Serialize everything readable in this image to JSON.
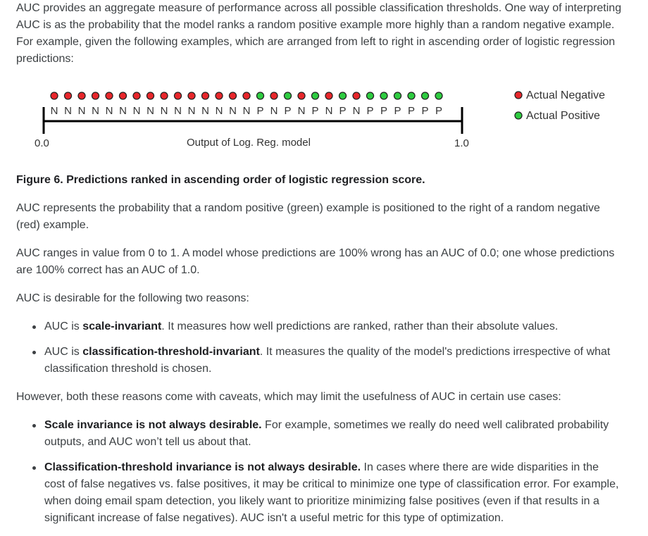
{
  "intro": {
    "text": "AUC provides an aggregate measure of performance across all possible classification thresholds. One way of interpreting AUC is as the probability that the model ranks a random positive example more highly than a random negative example. For example, given the following examples, which are arranged from left to right in ascending order of logistic regression predictions:"
  },
  "figure": {
    "sequence": [
      "N",
      "N",
      "N",
      "N",
      "N",
      "N",
      "N",
      "N",
      "N",
      "N",
      "N",
      "N",
      "N",
      "N",
      "N",
      "P",
      "N",
      "P",
      "N",
      "P",
      "N",
      "P",
      "N",
      "P",
      "P",
      "P",
      "P",
      "P",
      "P"
    ],
    "colors": {
      "negative": "#e8262b",
      "positive": "#2ecc40",
      "axis": "#000000",
      "outline": "#222222"
    },
    "axis": {
      "min_label": "0.0",
      "max_label": "1.0",
      "label": "Output of Log. Reg. model"
    },
    "legend": {
      "negative": "Actual Negative",
      "positive": "Actual Positive"
    }
  },
  "caption": "Figure 6. Predictions ranked in ascending order of logistic regression score.",
  "p1": "AUC represents the probability that a random positive (green) example is positioned to the right of a random negative (red) example.",
  "p2": "AUC ranges in value from 0 to 1. A model whose predictions are 100% wrong has an AUC of 0.0; one whose predictions are 100% correct has an AUC of 1.0.",
  "p3": "AUC is desirable for the following two reasons:",
  "reasons": [
    {
      "pre": "AUC is ",
      "bold": "scale-invariant",
      "post": ". It measures how well predictions are ranked, rather than their absolute values."
    },
    {
      "pre": "AUC is ",
      "bold": "classification-threshold-invariant",
      "post": ". It measures the quality of the model's predictions irrespective of what classification threshold is chosen."
    }
  ],
  "p4": "However, both these reasons come with caveats, which may limit the usefulness of AUC in certain use cases:",
  "caveats": [
    {
      "bold": "Scale invariance is not always desirable.",
      "post": " For example, sometimes we really do need well calibrated probability outputs, and AUC won’t tell us about that."
    },
    {
      "bold": "Classification-threshold invariance is not always desirable.",
      "post": " In cases where there are wide disparities in the cost of false negatives vs. false positives, it may be critical to minimize one type of classification error. For example, when doing email spam detection, you likely want to prioritize minimizing false positives (even if that results in a significant increase of false negatives). AUC isn't a useful metric for this type of optimization."
    }
  ]
}
